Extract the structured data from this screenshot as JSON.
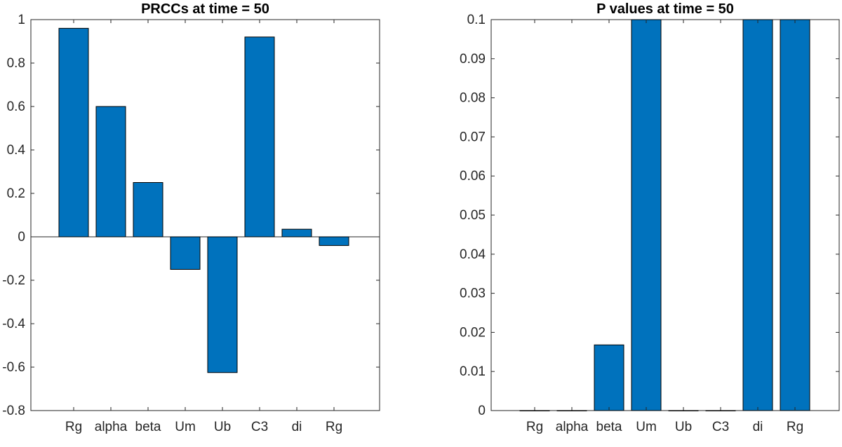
{
  "chart_data": [
    {
      "type": "bar",
      "title": "PRCCs at time = 50",
      "categories": [
        "Rg",
        "alpha",
        "beta",
        "Um",
        "Ub",
        "C3",
        "di",
        "Rg"
      ],
      "values": [
        0.96,
        0.6,
        0.25,
        -0.15,
        -0.625,
        0.92,
        0.035,
        -0.04
      ],
      "ylim": [
        -0.8,
        1
      ],
      "yticks": [
        "-0.8",
        "-0.6",
        "-0.4",
        "-0.2",
        "0",
        "0.2",
        "0.4",
        "0.6",
        "0.8",
        "1"
      ],
      "ytick_values": [
        -0.8,
        -0.6,
        -0.4,
        -0.2,
        0,
        0.2,
        0.4,
        0.6,
        0.8,
        1
      ],
      "baseline_line": true,
      "bar_color": "#0072BD",
      "xlabel": "",
      "ylabel": "",
      "grid": false
    },
    {
      "type": "bar",
      "title": "P values at time = 50",
      "categories": [
        "Rg",
        "alpha",
        "beta",
        "Um",
        "Ub",
        "C3",
        "di",
        "Rg"
      ],
      "values": [
        0.0,
        0.0,
        0.0168,
        0.1,
        0.0,
        0.0,
        0.1,
        0.1
      ],
      "ylim": [
        0,
        0.1
      ],
      "yticks": [
        "0",
        "0.01",
        "0.02",
        "0.03",
        "0.04",
        "0.05",
        "0.06",
        "0.07",
        "0.08",
        "0.09",
        "0.1"
      ],
      "ytick_values": [
        0,
        0.01,
        0.02,
        0.03,
        0.04,
        0.05,
        0.06,
        0.07,
        0.08,
        0.09,
        0.1
      ],
      "baseline_line": false,
      "bar_color": "#0072BD",
      "xlabel": "",
      "ylabel": "",
      "grid": false
    }
  ]
}
